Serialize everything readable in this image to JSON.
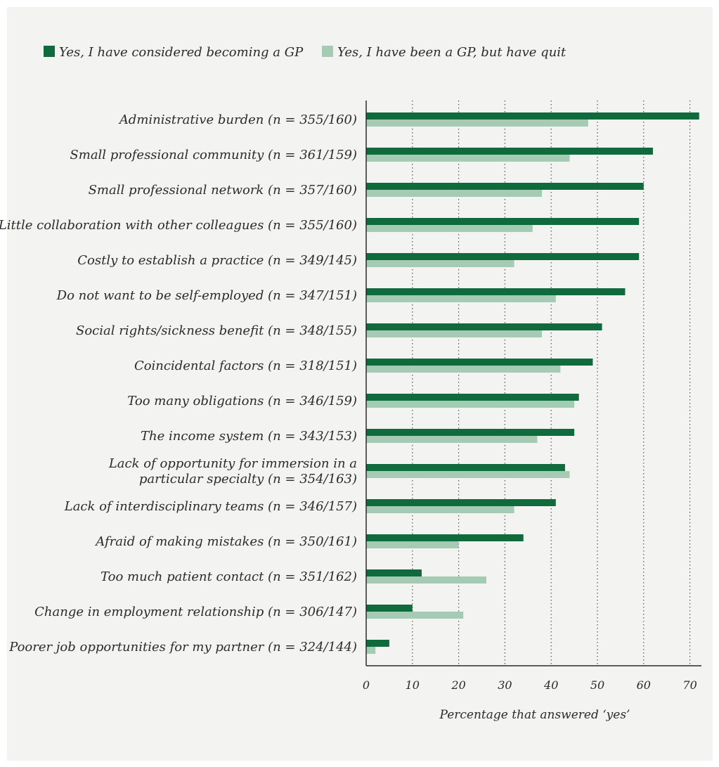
{
  "colors": {
    "series1": "#0f6b3c",
    "series2": "#a6cbb4",
    "background": "#f3f3f1",
    "axis": "#2b2b2b"
  },
  "legend": {
    "placement": "top-left",
    "items": [
      "Yes, I have considered becoming a GP",
      "Yes, I have been a GP, but have quit"
    ]
  },
  "chart_data": {
    "type": "bar",
    "orientation": "horizontal",
    "categories": [
      [
        "Administrative burden (n = 355/160)"
      ],
      [
        "Small professional community (n = 361/159)"
      ],
      [
        "Small professional network (n = 357/160)"
      ],
      [
        "Little collaboration with other colleagues (n = 355/160)"
      ],
      [
        "Costly to establish a practice (n = 349/145)"
      ],
      [
        "Do not want to be self-employed (n = 347/151)"
      ],
      [
        "Social rights/sickness benefit (n = 348/155)"
      ],
      [
        "Coincidental factors (n = 318/151)"
      ],
      [
        "Too many obligations (n = 346/159)"
      ],
      [
        "The income system (n = 343/153)"
      ],
      [
        "Lack of opportunity for immersion in a",
        "particular specialty (n = 354/163)"
      ],
      [
        "Lack of interdisciplinary teams (n = 346/157)"
      ],
      [
        "Afraid of making mistakes (n = 350/161)"
      ],
      [
        "Too much patient contact (n = 351/162)"
      ],
      [
        "Change in employment relationship (n = 306/147)"
      ],
      [
        "Poorer job opportunities for my partner (n = 324/144)"
      ]
    ],
    "series": [
      {
        "name": "Yes, I have considered becoming a GP",
        "values": [
          72,
          62,
          60,
          59,
          59,
          56,
          51,
          49,
          46,
          45,
          43,
          41,
          34,
          12,
          10,
          5
        ]
      },
      {
        "name": "Yes, I have been a GP, but have quit",
        "values": [
          48,
          44,
          38,
          36,
          32,
          41,
          38,
          42,
          45,
          37,
          44,
          32,
          20,
          26,
          21,
          2
        ]
      }
    ],
    "xlabel": "Percentage that answered ‘yes’",
    "ylabel": "",
    "xlim": [
      0,
      72
    ],
    "xticks": [
      0,
      10,
      20,
      30,
      40,
      50,
      60,
      70
    ],
    "grid": "vertical dotted"
  }
}
